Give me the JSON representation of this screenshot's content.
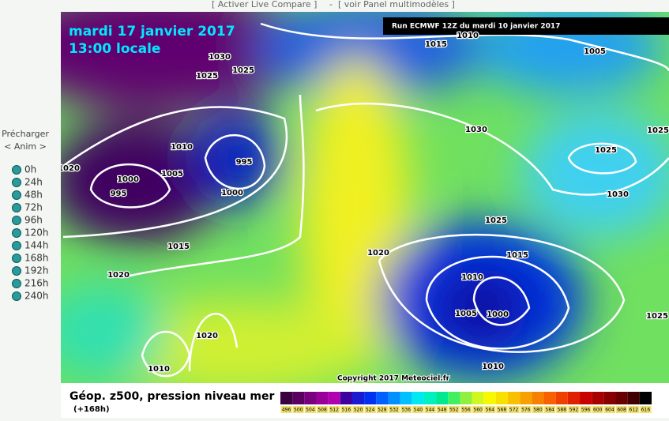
{
  "header": {
    "links": [
      "[ Activer Live Compare ]",
      "-",
      "[ voir Panel multimodèles ]"
    ]
  },
  "sidebar": {
    "preload": "Précharger",
    "anim": "< Anim >",
    "steps": [
      "0h",
      "24h",
      "48h",
      "72h",
      "96h",
      "120h",
      "144h",
      "168h",
      "192h",
      "216h",
      "240h"
    ]
  },
  "map": {
    "title": "mardi 17 janvier 2017",
    "subtitle": "13:00 locale",
    "run": "Run ECMWF 12Z du mardi 10 janvier 2017",
    "copyright": "Copyright 2017 Meteociel.fr",
    "isobar_labels": [
      "1030",
      "1025",
      "1025",
      "1015",
      "1010",
      "1005",
      "1010",
      "1020",
      "1005",
      "995",
      "1000",
      "995",
      "1000",
      "1030",
      "1025",
      "1025",
      "1030",
      "1025",
      "1015",
      "1020",
      "1015",
      "1010",
      "1020",
      "1005",
      "1000",
      "1025",
      "1020",
      "1010",
      "1010"
    ]
  },
  "legend": {
    "title": "Géop. z500, pression niveau mer",
    "step": "(+168h)",
    "scale": [
      496,
      500,
      504,
      508,
      512,
      516,
      520,
      524,
      528,
      532,
      536,
      540,
      544,
      548,
      552,
      556,
      560,
      564,
      568,
      572,
      576,
      580,
      584,
      588,
      592,
      596,
      600,
      604,
      608,
      612,
      616
    ],
    "colors": [
      "#3a0040",
      "#5a0060",
      "#7a0080",
      "#990099",
      "#b000b0",
      "#3c00a0",
      "#1a1ad0",
      "#0030f0",
      "#0060ff",
      "#0090ff",
      "#00c0ff",
      "#00e8f0",
      "#00f0c0",
      "#00e890",
      "#40f060",
      "#90f040",
      "#d0f820",
      "#f8f800",
      "#f8e000",
      "#f8c000",
      "#f8a000",
      "#f88000",
      "#f86000",
      "#f04000",
      "#e02000",
      "#c80000",
      "#a80000",
      "#880000",
      "#680000",
      "#400000",
      "#000000"
    ]
  }
}
